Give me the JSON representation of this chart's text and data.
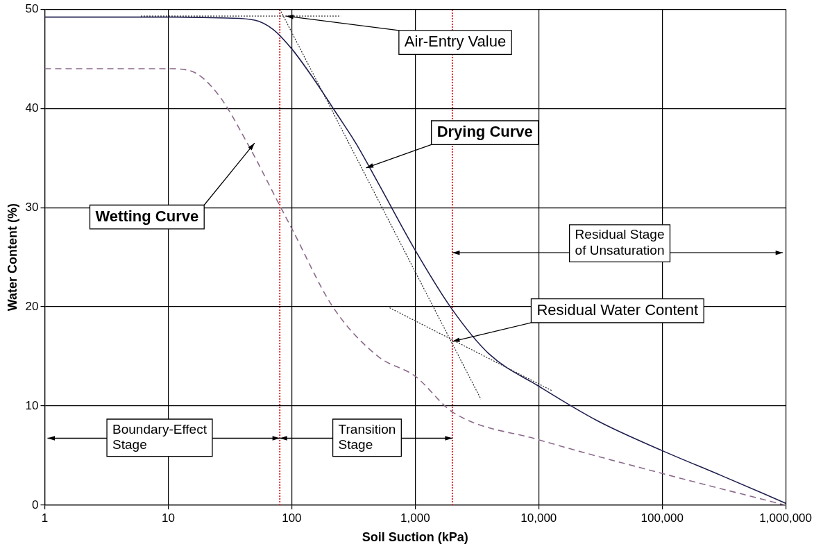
{
  "chart_data": {
    "type": "line",
    "xlabel": "Soil Suction (kPa)",
    "ylabel": "Water Content (%)",
    "log": "x",
    "xlim": [
      1,
      1000000
    ],
    "xticks": [
      1,
      10,
      100,
      {
        "value": 1000,
        "label": "1,000"
      },
      {
        "value": 10000,
        "label": "10,000"
      },
      {
        "value": 100000,
        "label": "100,000"
      },
      {
        "value": 1000000,
        "label": "1,000,000"
      }
    ],
    "ylim": [
      0,
      50
    ],
    "yticks": [
      0,
      10,
      20,
      30,
      40,
      50
    ],
    "grid": true,
    "legend": false,
    "marker": "none",
    "series": [
      {
        "color": "#1f1f4f",
        "line_style": "solid",
        "x": [
          1,
          10,
          30,
          50,
          70,
          100,
          150,
          230,
          330,
          500,
          1000,
          2000,
          4000,
          10000,
          30000,
          100000,
          300000,
          1000000
        ],
        "values": [
          49.2,
          49.2,
          49.1,
          48.9,
          48.0,
          46.0,
          43.0,
          39.5,
          36.5,
          32.5,
          25.7,
          19.7,
          15.2,
          12.0,
          8.5,
          5.5,
          3.0,
          0.2
        ]
      },
      {
        "color": "#8a6a8a",
        "line_style": "dashed",
        "x": [
          1,
          10,
          15,
          25,
          45,
          80,
          100,
          215,
          500,
          1000,
          2000,
          10000,
          100000,
          1000000
        ],
        "values": [
          44.0,
          44.0,
          43.8,
          41.5,
          36.2,
          30.2,
          27.9,
          20.0,
          15.0,
          13.0,
          9.4,
          6.6,
          3.2,
          0
        ]
      },
      {
        "color": "#333333",
        "line_style": "dotted",
        "x": [
          6,
          250
        ],
        "values": [
          49.3,
          49.3
        ]
      },
      {
        "color": "#333333",
        "line_style": "dotted",
        "x": [
          80,
          3400
        ],
        "values": [
          50,
          10.7
        ]
      },
      {
        "color": "#333333",
        "line_style": "dotted",
        "x": [
          620,
          13000
        ],
        "values": [
          19.9,
          11.5
        ]
      }
    ],
    "ref_lines": [
      {
        "axis": "x",
        "value": 80,
        "color": "#e03030",
        "line_style": "dotted"
      },
      {
        "axis": "x",
        "value": 2000,
        "color": "#e03030",
        "line_style": "dotted"
      }
    ],
    "annotations": [
      {
        "text": "Air-Entry Value",
        "x": 90,
        "y": 49.3
      },
      {
        "text": "Drying Curve",
        "x": 400,
        "y": 34
      },
      {
        "text": "Wetting Curve",
        "x": 50,
        "y": 36.5
      },
      "Residual Stage\nof Unsaturation",
      {
        "text": "Residual Water Content",
        "x": 2000,
        "y": 16.5
      },
      "Boundary-Effect\nStage",
      "Transition\nStage"
    ]
  }
}
